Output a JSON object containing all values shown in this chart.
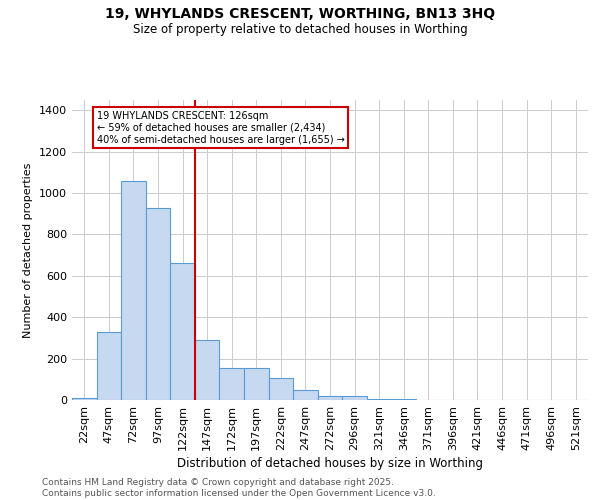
{
  "title": "19, WHYLANDS CRESCENT, WORTHING, BN13 3HQ",
  "subtitle": "Size of property relative to detached houses in Worthing",
  "xlabel": "Distribution of detached houses by size in Worthing",
  "ylabel": "Number of detached properties",
  "footnote": "Contains HM Land Registry data © Crown copyright and database right 2025.\nContains public sector information licensed under the Open Government Licence v3.0.",
  "bin_labels": [
    "22sqm",
    "47sqm",
    "72sqm",
    "97sqm",
    "122sqm",
    "147sqm",
    "172sqm",
    "197sqm",
    "222sqm",
    "247sqm",
    "272sqm",
    "296sqm",
    "321sqm",
    "346sqm",
    "371sqm",
    "396sqm",
    "421sqm",
    "446sqm",
    "471sqm",
    "496sqm",
    "521sqm"
  ],
  "values": [
    10,
    330,
    1060,
    930,
    660,
    290,
    155,
    155,
    105,
    50,
    20,
    20,
    5,
    5,
    0,
    2,
    0,
    0,
    0,
    0,
    0
  ],
  "bar_color": "#c6d9f0",
  "bar_edge_color": "#5b9bd5",
  "bar_linewidth": 0.8,
  "red_line_x": 4,
  "red_line_color": "#cc0000",
  "annotation_text": "19 WHYLANDS CRESCENT: 126sqm\n← 59% of detached houses are smaller (2,434)\n40% of semi-detached houses are larger (1,655) →",
  "annotation_box_color": "#ffffff",
  "annotation_box_edge_color": "#cc0000",
  "ylim": [
    0,
    1450
  ],
  "yticks": [
    0,
    200,
    400,
    600,
    800,
    1000,
    1200,
    1400
  ],
  "background_color": "#ffffff",
  "grid_color": "#cccccc",
  "footnote_color": "#555555"
}
